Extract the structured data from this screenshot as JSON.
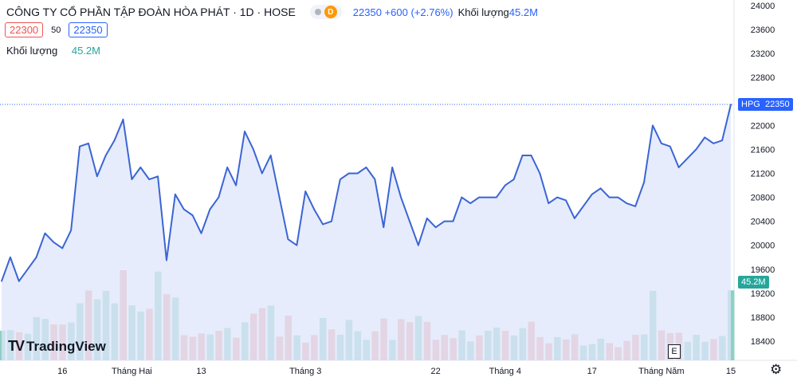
{
  "header": {
    "title": "CÔNG TY CỔ PHẦN TẬP ĐOÀN HÒA PHÁT · 1D · HOSE",
    "status_badge": "D",
    "quote": "22350 +600 (+2.76%)",
    "volume_label": "Khối lượng",
    "volume_value": "45.2M",
    "bid": "22300",
    "spread": "50",
    "ask": "22350"
  },
  "volume_legend": {
    "label": "Khối lượng",
    "value": "45.2M"
  },
  "price_label": {
    "symbol": "HPG",
    "value": "22350"
  },
  "volume_price_label": "45.2M",
  "event_badge": "E",
  "logo_text": "TradingView",
  "colors": {
    "line": "#3b65d4",
    "fill": "#dde6fb",
    "up": "#26a69a",
    "down": "#ef5350",
    "accent": "#2962ff"
  },
  "chart_data": {
    "type": "line",
    "title": "",
    "xlabel": "",
    "ylabel": "",
    "ylim": [
      18100,
      24050
    ],
    "y_ticks": [
      24000,
      23600,
      23200,
      22800,
      22400,
      22000,
      21600,
      21200,
      20800,
      20400,
      20000,
      19600,
      19200,
      18800,
      18400
    ],
    "x_ticks": [
      {
        "index": 7,
        "label": "16"
      },
      {
        "index": 15,
        "label": "Tháng Hai"
      },
      {
        "index": 23,
        "label": "13"
      },
      {
        "index": 35,
        "label": "Tháng 3"
      },
      {
        "index": 50,
        "label": "22"
      },
      {
        "index": 58,
        "label": "Tháng 4"
      },
      {
        "index": 68,
        "label": "17"
      },
      {
        "index": 76,
        "label": "Tháng Năm"
      },
      {
        "index": 84,
        "label": "15"
      }
    ],
    "series": [
      {
        "name": "HPG",
        "values": [
          19400,
          19800,
          19400,
          19600,
          19800,
          20200,
          20050,
          19950,
          20250,
          21650,
          21700,
          21150,
          21500,
          21750,
          22100,
          21100,
          21300,
          21100,
          21150,
          19750,
          20850,
          20600,
          20500,
          20200,
          20600,
          20800,
          21300,
          21000,
          21900,
          21600,
          21200,
          21500,
          20800,
          20100,
          20000,
          20900,
          20600,
          20350,
          20400,
          21100,
          21200,
          21200,
          21300,
          21100,
          20300,
          21300,
          20800,
          20400,
          20000,
          20450,
          20300,
          20400,
          20400,
          20800,
          20700,
          20800,
          20800,
          20800,
          21000,
          21100,
          21500,
          21500,
          21200,
          20700,
          20800,
          20750,
          20450,
          20650,
          20850,
          20950,
          20800,
          20800,
          20700,
          20650,
          21050,
          22000,
          21700,
          21650,
          21300,
          21450,
          21600,
          21800,
          21700,
          21750,
          22350
        ]
      }
    ],
    "volume_series": [
      {
        "name": "Khối lượng",
        "values": [
          19.1,
          19.5,
          18.2,
          17.1,
          27.9,
          26.7,
          23.2,
          23.1,
          24.4,
          36.8,
          45.1,
          39.4,
          44.9,
          36.8,
          58.2,
          35.5,
          31.5,
          33.3,
          57.3,
          42.7,
          40.5,
          16.2,
          15.2,
          17.4,
          16.7,
          19.0,
          20.9,
          14.6,
          24.6,
          30.2,
          33.7,
          35.4,
          15.3,
          28.8,
          16.1,
          11.4,
          16.3,
          27.3,
          20.0,
          16.5,
          26.1,
          18.8,
          13.2,
          18.7,
          27.0,
          13.2,
          26.6,
          24.6,
          28.6,
          24.8,
          13.2,
          16.4,
          14.3,
          19.3,
          12.2,
          16.1,
          19.1,
          21.1,
          19.1,
          16.0,
          20.8,
          24.9,
          15.0,
          11.0,
          15.0,
          13.5,
          16.8,
          9.5,
          10.5,
          14.0,
          11.1,
          8.5,
          12.5,
          16.5,
          16.7,
          44.9,
          19.3,
          17.6,
          17.8,
          11.9,
          16.5,
          12.0,
          13.7,
          15.7,
          45.2
        ],
        "colors": [
          "up",
          "up",
          "down",
          "up",
          "up",
          "up",
          "down",
          "down",
          "up",
          "up",
          "down",
          "up",
          "up",
          "up",
          "down",
          "up",
          "up",
          "down",
          "up",
          "down",
          "up",
          "down",
          "down",
          "down",
          "up",
          "down",
          "up",
          "down",
          "up",
          "down",
          "down",
          "up",
          "down",
          "down",
          "up",
          "down",
          "down",
          "up",
          "down",
          "up",
          "up",
          "up",
          "up",
          "down",
          "down",
          "up",
          "down",
          "down",
          "up",
          "down",
          "down",
          "down",
          "down",
          "up",
          "up",
          "down",
          "up",
          "up",
          "down",
          "up",
          "up",
          "down",
          "down",
          "down",
          "up",
          "down",
          "down",
          "up",
          "up",
          "up",
          "down",
          "down",
          "down",
          "down",
          "up",
          "up",
          "down",
          "down",
          "down",
          "up",
          "up",
          "up",
          "down",
          "up",
          "up"
        ]
      }
    ]
  }
}
